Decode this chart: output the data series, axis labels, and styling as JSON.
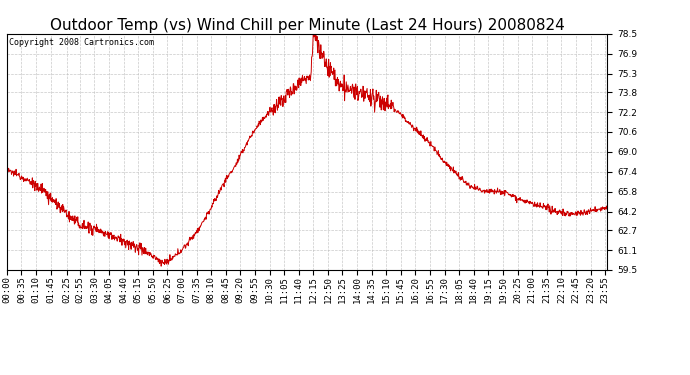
{
  "title": "Outdoor Temp (vs) Wind Chill per Minute (Last 24 Hours) 20080824",
  "copyright": "Copyright 2008 Cartronics.com",
  "ylim": [
    59.5,
    78.5
  ],
  "yticks": [
    59.5,
    61.1,
    62.7,
    64.2,
    65.8,
    67.4,
    69.0,
    70.6,
    72.2,
    73.8,
    75.3,
    76.9,
    78.5
  ],
  "line_color": "#cc0000",
  "bg_color": "#ffffff",
  "grid_color": "#bbbbbb",
  "title_fontsize": 11,
  "tick_fontsize": 6.5,
  "copyright_fontsize": 6,
  "xlabels": [
    "00:00",
    "00:35",
    "01:10",
    "01:45",
    "02:25",
    "02:55",
    "03:30",
    "04:05",
    "04:40",
    "05:15",
    "05:50",
    "06:25",
    "07:00",
    "07:35",
    "08:10",
    "08:45",
    "09:20",
    "09:55",
    "10:30",
    "11:05",
    "11:40",
    "12:15",
    "12:50",
    "13:25",
    "14:00",
    "14:35",
    "15:10",
    "15:45",
    "16:20",
    "16:55",
    "17:30",
    "18:05",
    "18:40",
    "19:15",
    "19:50",
    "20:25",
    "21:00",
    "21:35",
    "22:10",
    "22:45",
    "23:20",
    "23:55"
  ],
  "keypoints_t": [
    0,
    30,
    60,
    90,
    120,
    150,
    180,
    210,
    240,
    270,
    300,
    330,
    355,
    370,
    385,
    400,
    430,
    460,
    490,
    520,
    550,
    580,
    610,
    640,
    670,
    700,
    730,
    735,
    745,
    755,
    765,
    780,
    810,
    840,
    870,
    900,
    930,
    960,
    990,
    1020,
    1050,
    1080,
    1110,
    1140,
    1170,
    1200,
    1230,
    1260,
    1290,
    1320,
    1350,
    1380,
    1410,
    1440
  ],
  "keypoints_v": [
    67.5,
    67.1,
    66.5,
    65.8,
    64.8,
    63.8,
    63.0,
    62.8,
    62.4,
    62.0,
    61.5,
    61.0,
    60.5,
    60.1,
    60.1,
    60.5,
    61.5,
    62.8,
    64.5,
    66.5,
    68.0,
    70.0,
    71.5,
    72.5,
    73.5,
    74.5,
    75.3,
    78.5,
    77.8,
    76.8,
    76.2,
    75.3,
    74.0,
    73.8,
    73.5,
    73.0,
    72.5,
    71.5,
    70.5,
    69.5,
    68.2,
    67.2,
    66.2,
    65.9,
    65.9,
    65.7,
    65.2,
    64.8,
    64.5,
    64.2,
    64.0,
    64.1,
    64.3,
    64.5
  ],
  "noise_seed": 12345,
  "figwidth": 6.9,
  "figheight": 3.75,
  "dpi": 100
}
